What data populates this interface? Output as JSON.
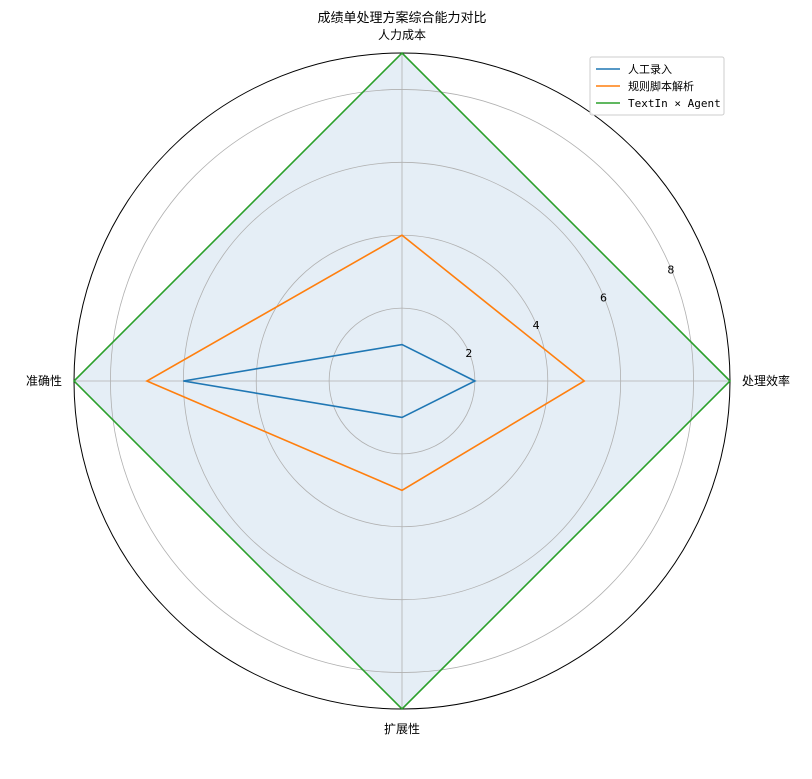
{
  "chart_data": {
    "type": "radar",
    "title": "成绩单处理方案综合能力对比",
    "axes": [
      "处理效率",
      "人力成本",
      "准确性",
      "扩展性"
    ],
    "rlim": [
      0,
      9
    ],
    "ticks": [
      2,
      4,
      6,
      8
    ],
    "tick_labels": [
      "2",
      "4",
      "6",
      "8"
    ],
    "grid": true,
    "legend_position": "top-right",
    "series": [
      {
        "name": "人工录入",
        "values": [
          2,
          1,
          6,
          1
        ],
        "color": "#1f77b4",
        "fill": false
      },
      {
        "name": "规则脚本解析",
        "values": [
          5,
          4,
          7,
          3
        ],
        "color": "#ff7f0e",
        "fill": false
      },
      {
        "name": "TextIn × Agent",
        "values": [
          9,
          9,
          9,
          9
        ],
        "color": "#2ca02c",
        "fill": true,
        "fill_color": "#e5eef6"
      }
    ]
  }
}
